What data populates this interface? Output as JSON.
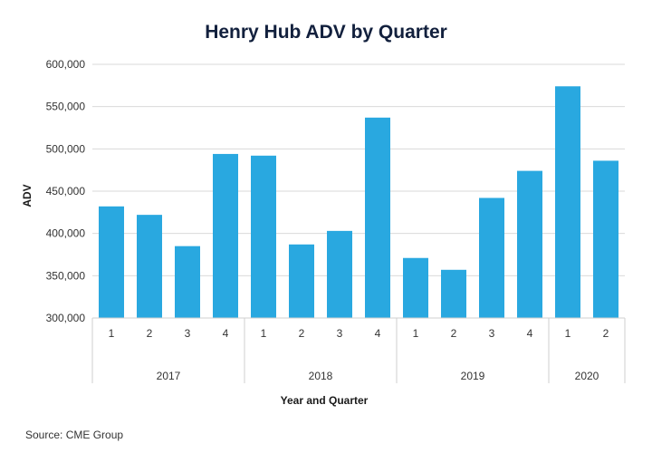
{
  "chart_data": {
    "type": "bar",
    "title": "Henry Hub ADV by Quarter",
    "xlabel": "Year and Quarter",
    "ylabel": "ADV",
    "ylim": [
      300000,
      600000
    ],
    "yticks": [
      300000,
      350000,
      400000,
      450000,
      500000,
      550000,
      600000
    ],
    "ytick_labels": [
      "300,000",
      "350,000",
      "400,000",
      "450,000",
      "500,000",
      "550,000",
      "600,000"
    ],
    "grid": true,
    "bar_color": "#29a8e0",
    "categories": [
      "1",
      "2",
      "3",
      "4",
      "1",
      "2",
      "3",
      "4",
      "1",
      "2",
      "3",
      "4",
      "1",
      "2"
    ],
    "groups": [
      {
        "label": "2017",
        "count": 4
      },
      {
        "label": "2018",
        "count": 4
      },
      {
        "label": "2019",
        "count": 4
      },
      {
        "label": "2020",
        "count": 2
      }
    ],
    "values": [
      432000,
      422000,
      385000,
      494000,
      492000,
      387000,
      403000,
      537000,
      371000,
      357000,
      442000,
      474000,
      574000,
      486000
    ]
  },
  "source": "Source: CME Group"
}
